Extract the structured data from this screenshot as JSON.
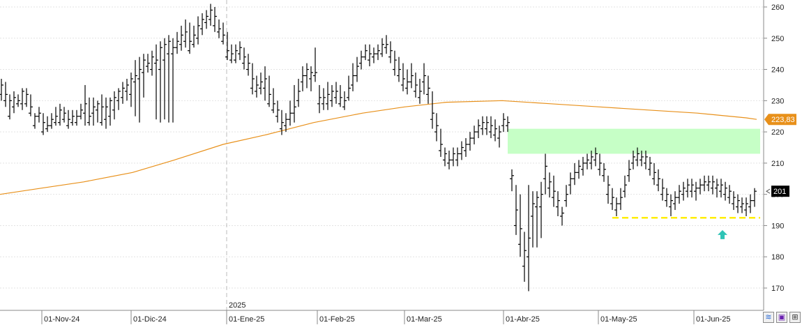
{
  "chart_data": {
    "type": "ohlc",
    "title": "",
    "xlabel": "",
    "ylabel": "",
    "ylim": [
      162,
      263
    ],
    "y_ticks": [
      "260",
      "250",
      "240",
      "230",
      "220",
      "210",
      "200",
      "190",
      "180",
      "170"
    ],
    "x_tick_labels": [
      "01-Nov-24",
      "01-Dic-24",
      "01-Ene-25",
      "01-Feb-25",
      "01-Mar-25",
      "01-Abr-25",
      "01-May-25",
      "01-Jun-25"
    ],
    "year_marker": "2025",
    "moving_average": {
      "color": "#e8901a",
      "label": "223,83",
      "points": [
        [
          0,
          200
        ],
        [
          60,
          202
        ],
        [
          120,
          204
        ],
        [
          190,
          207
        ],
        [
          250,
          211
        ],
        [
          320,
          216
        ],
        [
          380,
          219
        ],
        [
          450,
          223
        ],
        [
          520,
          226
        ],
        [
          580,
          228
        ],
        [
          640,
          229.5
        ],
        [
          720,
          230
        ],
        [
          790,
          229
        ],
        [
          860,
          228
        ],
        [
          930,
          227
        ],
        [
          1000,
          226
        ],
        [
          1070,
          224.5
        ],
        [
          1085,
          224
        ]
      ]
    },
    "last_price": {
      "label": "201",
      "value": 201
    },
    "resistance_zone": {
      "from": 213,
      "to": 221,
      "color": "#c6ffc6"
    },
    "support_line": {
      "value": 192.5,
      "color": "#ffee00"
    },
    "arrow_marker": {
      "color": "#2ec4b6",
      "value": 187
    },
    "bars": [
      [
        2,
        232,
        237,
        235,
        230
      ],
      [
        8,
        230,
        236,
        232,
        228
      ],
      [
        14,
        225,
        232,
        230,
        224
      ],
      [
        20,
        228,
        233,
        231,
        226
      ],
      [
        26,
        229,
        232,
        230,
        228
      ],
      [
        32,
        229,
        234,
        233,
        227
      ],
      [
        38,
        229,
        234,
        232,
        228
      ],
      [
        44,
        226,
        232,
        228,
        225
      ],
      [
        50,
        222,
        226,
        225,
        221
      ],
      [
        56,
        225,
        228,
        226,
        223
      ],
      [
        62,
        220,
        226,
        223,
        219
      ],
      [
        68,
        221,
        225,
        222,
        220
      ],
      [
        74,
        222,
        226,
        224,
        221
      ],
      [
        80,
        223,
        228,
        225,
        222
      ],
      [
        86,
        223,
        229,
        227,
        222
      ],
      [
        92,
        224,
        228,
        226,
        223
      ],
      [
        98,
        222,
        227,
        224,
        221
      ],
      [
        104,
        223,
        227,
        225,
        222
      ],
      [
        110,
        223,
        227,
        225,
        222
      ],
      [
        116,
        225,
        229,
        227,
        224
      ],
      [
        122,
        226,
        235,
        229,
        222
      ],
      [
        128,
        223,
        231,
        225,
        222
      ],
      [
        134,
        226,
        231,
        228,
        222
      ],
      [
        140,
        227,
        230,
        229,
        223
      ],
      [
        146,
        223,
        232,
        228,
        222
      ],
      [
        152,
        224,
        231,
        228,
        221
      ],
      [
        158,
        225,
        231,
        230,
        222
      ],
      [
        164,
        227,
        233,
        231,
        224
      ],
      [
        170,
        230,
        234,
        233,
        227
      ],
      [
        176,
        231,
        236,
        234,
        229
      ],
      [
        182,
        233,
        237,
        235,
        230
      ],
      [
        188,
        232,
        239,
        237,
        228
      ],
      [
        194,
        236,
        243,
        238,
        225
      ],
      [
        200,
        237,
        244,
        240,
        223
      ],
      [
        206,
        239,
        245,
        243,
        231
      ],
      [
        212,
        241,
        245,
        242,
        239
      ],
      [
        218,
        240,
        246,
        244,
        238
      ],
      [
        224,
        242,
        248,
        243,
        224
      ],
      [
        230,
        240,
        249,
        247,
        223
      ],
      [
        236,
        243,
        250,
        248,
        224
      ],
      [
        242,
        245,
        251,
        249,
        223
      ],
      [
        248,
        245,
        250,
        247,
        223
      ],
      [
        254,
        247,
        252,
        249,
        245
      ],
      [
        260,
        248,
        254,
        251,
        246
      ],
      [
        266,
        249,
        256,
        252,
        247
      ],
      [
        272,
        246,
        255,
        249,
        245
      ],
      [
        278,
        248,
        254,
        251,
        247
      ],
      [
        284,
        250,
        257,
        254,
        248
      ],
      [
        290,
        253,
        258,
        256,
        251
      ],
      [
        296,
        255,
        259,
        257,
        253
      ],
      [
        302,
        256,
        261,
        259,
        254
      ],
      [
        308,
        254,
        260,
        257,
        252
      ],
      [
        314,
        252,
        256,
        253,
        250
      ],
      [
        320,
        249,
        255,
        251,
        248
      ],
      [
        326,
        244,
        252,
        246,
        243
      ],
      [
        332,
        243,
        248,
        245,
        242
      ],
      [
        338,
        243,
        248,
        246,
        242
      ],
      [
        344,
        245,
        249,
        247,
        243
      ],
      [
        350,
        242,
        247,
        244,
        240
      ],
      [
        356,
        240,
        245,
        242,
        238
      ],
      [
        362,
        234,
        242,
        237,
        232
      ],
      [
        368,
        233,
        238,
        235,
        231
      ],
      [
        374,
        234,
        239,
        236,
        232
      ],
      [
        380,
        234,
        241,
        237,
        230
      ],
      [
        386,
        229,
        238,
        232,
        228
      ],
      [
        392,
        227,
        234,
        229,
        226
      ],
      [
        398,
        225,
        230,
        227,
        223
      ],
      [
        404,
        221,
        227,
        223,
        219
      ],
      [
        410,
        222,
        226,
        224,
        220
      ],
      [
        416,
        224,
        230,
        226,
        222
      ],
      [
        422,
        226,
        235,
        228,
        223
      ],
      [
        428,
        230,
        237,
        233,
        228
      ],
      [
        434,
        236,
        241,
        238,
        233
      ],
      [
        440,
        238,
        242,
        240,
        234
      ],
      [
        446,
        237,
        241,
        239,
        233
      ],
      [
        452,
        238,
        247,
        239,
        236
      ],
      [
        458,
        229,
        235,
        231,
        226
      ],
      [
        464,
        229,
        234,
        231,
        227
      ],
      [
        470,
        229,
        236,
        232,
        227
      ],
      [
        476,
        230,
        235,
        233,
        228
      ],
      [
        482,
        231,
        236,
        233,
        229
      ],
      [
        488,
        229,
        235,
        231,
        228
      ],
      [
        494,
        228,
        233,
        230,
        227
      ],
      [
        500,
        231,
        238,
        234,
        230
      ],
      [
        506,
        235,
        242,
        238,
        233
      ],
      [
        512,
        238,
        244,
        241,
        236
      ],
      [
        518,
        242,
        246,
        244,
        240
      ],
      [
        524,
        244,
        248,
        246,
        243
      ],
      [
        530,
        243,
        248,
        245,
        241
      ],
      [
        536,
        244,
        247,
        245,
        242
      ],
      [
        542,
        245,
        248,
        246,
        243
      ],
      [
        548,
        245,
        250,
        248,
        244
      ],
      [
        554,
        247,
        251,
        248,
        245
      ],
      [
        560,
        244,
        249,
        246,
        242
      ],
      [
        566,
        240,
        246,
        243,
        238
      ],
      [
        572,
        238,
        244,
        240,
        236
      ],
      [
        578,
        235,
        242,
        237,
        233
      ],
      [
        584,
        234,
        240,
        236,
        232
      ],
      [
        590,
        236,
        242,
        238,
        234
      ],
      [
        596,
        233,
        239,
        235,
        231
      ],
      [
        602,
        231,
        237,
        233,
        229
      ],
      [
        608,
        236,
        242,
        238,
        232
      ],
      [
        614,
        232,
        238,
        234,
        229
      ],
      [
        620,
        224,
        233,
        226,
        221
      ],
      [
        626,
        220,
        226,
        222,
        217
      ],
      [
        632,
        214,
        221,
        216,
        212
      ],
      [
        638,
        211,
        215,
        213,
        209
      ],
      [
        644,
        210,
        214,
        211,
        208
      ],
      [
        650,
        211,
        215,
        213,
        209
      ],
      [
        656,
        211,
        215,
        213,
        209
      ],
      [
        662,
        213,
        217,
        215,
        211
      ],
      [
        668,
        214,
        218,
        216,
        212
      ],
      [
        674,
        216,
        220,
        218,
        214
      ],
      [
        680,
        218,
        222,
        220,
        216
      ],
      [
        686,
        220,
        224,
        222,
        218
      ],
      [
        692,
        221,
        225,
        223,
        219
      ],
      [
        698,
        221,
        225,
        223,
        219
      ],
      [
        704,
        220,
        225,
        222,
        218
      ],
      [
        710,
        219,
        224,
        221,
        217
      ],
      [
        716,
        218,
        222,
        220,
        215
      ],
      [
        722,
        222,
        226,
        224,
        220
      ],
      [
        728,
        222,
        225,
        223,
        220
      ],
      [
        734,
        205,
        208,
        206,
        201
      ],
      [
        740,
        190,
        203,
        195,
        187
      ],
      [
        746,
        184,
        200,
        189,
        180
      ],
      [
        752,
        177,
        188,
        182,
        172
      ],
      [
        758,
        180,
        203,
        186,
        169
      ],
      [
        764,
        193,
        201,
        197,
        183
      ],
      [
        770,
        196,
        201,
        199,
        183
      ],
      [
        776,
        196,
        204,
        200,
        186
      ],
      [
        782,
        205,
        213,
        209,
        200
      ],
      [
        788,
        202,
        207,
        204,
        199
      ],
      [
        794,
        199,
        206,
        201,
        196
      ],
      [
        800,
        196,
        201,
        198,
        193
      ],
      [
        806,
        193,
        196,
        194,
        190
      ],
      [
        812,
        198,
        203,
        200,
        196
      ],
      [
        818,
        203,
        207,
        205,
        200
      ],
      [
        824,
        205,
        210,
        207,
        203
      ],
      [
        830,
        207,
        211,
        209,
        205
      ],
      [
        836,
        208,
        212,
        210,
        206
      ],
      [
        842,
        210,
        213,
        211,
        208
      ],
      [
        848,
        210,
        214,
        212,
        208
      ],
      [
        854,
        211,
        215,
        213,
        209
      ],
      [
        860,
        208,
        213,
        210,
        206
      ],
      [
        866,
        206,
        210,
        208,
        204
      ],
      [
        872,
        200,
        206,
        203,
        197
      ],
      [
        878,
        197,
        202,
        199,
        195
      ],
      [
        884,
        195,
        199,
        197,
        193
      ],
      [
        890,
        197,
        202,
        199,
        195
      ],
      [
        896,
        201,
        206,
        203,
        199
      ],
      [
        902,
        206,
        211,
        208,
        204
      ],
      [
        908,
        210,
        214,
        212,
        208
      ],
      [
        914,
        211,
        215,
        213,
        209
      ],
      [
        920,
        211,
        214,
        212,
        209
      ],
      [
        926,
        210,
        214,
        212,
        208
      ],
      [
        932,
        208,
        212,
        210,
        206
      ],
      [
        938,
        205,
        210,
        207,
        203
      ],
      [
        944,
        203,
        208,
        205,
        201
      ],
      [
        950,
        200,
        205,
        202,
        198
      ],
      [
        956,
        198,
        202,
        200,
        196
      ],
      [
        962,
        196,
        200,
        198,
        193
      ],
      [
        968,
        197,
        201,
        199,
        195
      ],
      [
        974,
        199,
        203,
        201,
        197
      ],
      [
        980,
        200,
        204,
        202,
        198
      ],
      [
        986,
        201,
        205,
        203,
        199
      ],
      [
        992,
        201,
        205,
        203,
        199
      ],
      [
        998,
        201,
        204,
        202,
        198
      ],
      [
        1004,
        202,
        205,
        203,
        200
      ],
      [
        1010,
        203,
        206,
        204,
        201
      ],
      [
        1016,
        203,
        206,
        204,
        201
      ],
      [
        1022,
        202,
        206,
        204,
        200
      ],
      [
        1028,
        202,
        205,
        203,
        199
      ],
      [
        1034,
        201,
        205,
        203,
        199
      ],
      [
        1040,
        200,
        204,
        202,
        198
      ],
      [
        1046,
        199,
        203,
        201,
        197
      ],
      [
        1052,
        197,
        201,
        199,
        195
      ],
      [
        1058,
        196,
        200,
        198,
        194
      ],
      [
        1064,
        196,
        199,
        197,
        194
      ],
      [
        1070,
        195,
        199,
        197,
        193
      ],
      [
        1076,
        196,
        200,
        198,
        194
      ],
      [
        1082,
        198,
        202,
        201,
        196
      ]
    ]
  }
}
